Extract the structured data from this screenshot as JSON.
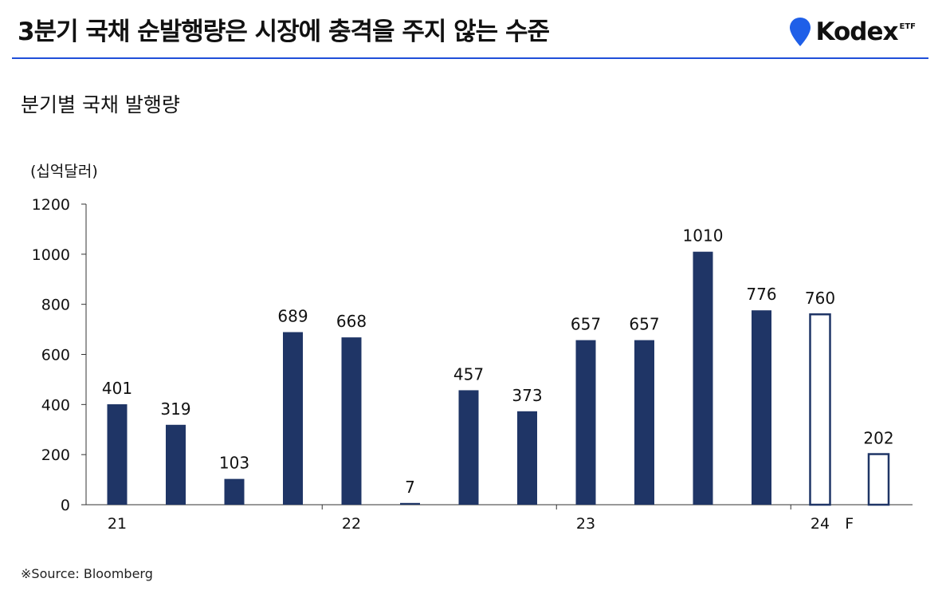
{
  "header": {
    "title": "3분기 국채 순발행량은 시장에 충격을 주지 않는 수준",
    "brand": {
      "name": "Kodex",
      "suffix": "ETF",
      "pin_icon": "location-pin-icon",
      "brand_color": "#1f5fe8"
    }
  },
  "chart_data": {
    "type": "bar",
    "title": "분기별 국채 발행량",
    "unit_label": "(십억달러)",
    "ylim": [
      0,
      1200
    ],
    "yticks": [
      "0",
      "200",
      "400",
      "600",
      "800",
      "1000",
      "1200"
    ],
    "x_year_labels": [
      {
        "label": "21",
        "at_index": 0
      },
      {
        "label": "22",
        "at_index": 4
      },
      {
        "label": "23",
        "at_index": 8
      },
      {
        "label": "24",
        "at_index": 12
      },
      {
        "label": "F",
        "at_index": 12.5
      }
    ],
    "values": [
      401,
      319,
      103,
      689,
      668,
      7,
      457,
      373,
      657,
      657,
      1010,
      776,
      760,
      202
    ],
    "forecast": [
      false,
      false,
      false,
      false,
      false,
      false,
      false,
      false,
      false,
      false,
      false,
      false,
      true,
      true
    ],
    "data_labels": [
      "401",
      "319",
      "103",
      "689",
      "668",
      "7",
      "457",
      "373",
      "657",
      "657",
      "1010",
      "776",
      "760",
      "202"
    ],
    "bar_color": "#1f3566",
    "forecast_fill": "#ffffff",
    "grid": false,
    "legend": "none"
  },
  "footer": {
    "source": "※Source: Bloomberg"
  }
}
